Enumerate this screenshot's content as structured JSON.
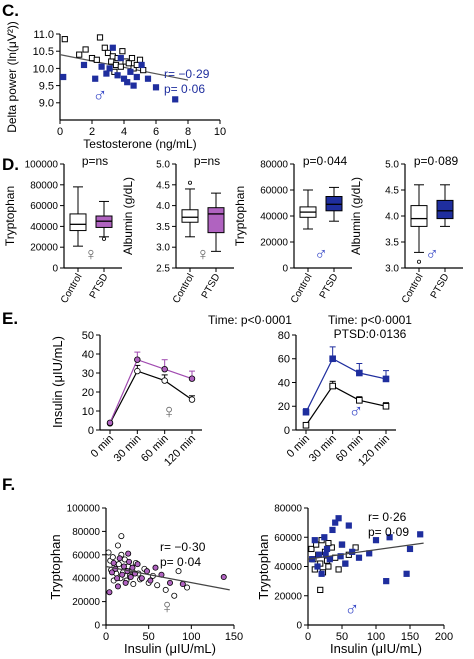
{
  "colors": {
    "blue": "#1f2e9e",
    "blue_sym": "#3a4bc8",
    "purple": "#a04ab0",
    "purple_fill": "#b063c0",
    "black": "#000000"
  },
  "panels": {
    "C": {
      "letter": "C."
    },
    "D": {
      "letter": "D."
    },
    "E": {
      "letter": "E."
    },
    "F": {
      "letter": "F."
    }
  },
  "chart_data": [
    {
      "id": "C",
      "type": "scatter",
      "xlabel": "Testosterone (ng/mL)",
      "ylabel": "Delta power (ln(μV²))",
      "xlim": [
        0,
        10
      ],
      "ylim": [
        8.5,
        11.0
      ],
      "xticks": [
        0,
        2,
        4,
        6,
        8,
        10
      ],
      "yticks": [
        9.0,
        9.5,
        10.0,
        10.5,
        11.0
      ],
      "ytick_labels": [
        "9.0",
        "9.5",
        "10.0",
        "10.5",
        "11.0"
      ],
      "symbol": "♂",
      "annotation": [
        "r= −0·29",
        "p= 0·06"
      ],
      "trend": {
        "x": [
          0,
          8
        ],
        "y": [
          10.4,
          9.66
        ]
      },
      "series": [
        {
          "style": "open-square",
          "points": [
            [
              0.3,
              10.85
            ],
            [
              1.2,
              10.4
            ],
            [
              1.6,
              10.55
            ],
            [
              2.0,
              10.3
            ],
            [
              2.3,
              10.25
            ],
            [
              2.5,
              10.9
            ],
            [
              2.8,
              10.6
            ],
            [
              3.0,
              10.45
            ],
            [
              3.2,
              10.2
            ],
            [
              3.3,
              10.35
            ],
            [
              3.5,
              10.1
            ],
            [
              3.6,
              10.3
            ],
            [
              3.8,
              10.05
            ],
            [
              3.9,
              10.5
            ],
            [
              4.1,
              10.2
            ],
            [
              4.3,
              10.15
            ],
            [
              4.5,
              10.3
            ],
            [
              4.6,
              10.0
            ],
            [
              4.8,
              10.1
            ],
            [
              5.0,
              10.25
            ],
            [
              5.2,
              9.95
            ],
            [
              3.4,
              9.9
            ]
          ]
        },
        {
          "style": "filled-square",
          "points": [
            [
              0.2,
              9.75
            ],
            [
              1.5,
              10.1
            ],
            [
              2.2,
              9.7
            ],
            [
              2.6,
              10.05
            ],
            [
              2.9,
              9.85
            ],
            [
              3.1,
              10.0
            ],
            [
              3.3,
              10.6
            ],
            [
              3.6,
              9.8
            ],
            [
              3.8,
              10.3
            ],
            [
              4.0,
              9.7
            ],
            [
              4.2,
              9.6
            ],
            [
              4.4,
              9.9
            ],
            [
              4.6,
              9.5
            ],
            [
              4.8,
              9.75
            ],
            [
              5.1,
              10.1
            ],
            [
              5.5,
              9.7
            ],
            [
              7.2,
              9.1
            ],
            [
              6.0,
              9.45
            ]
          ]
        }
      ]
    },
    {
      "id": "D1",
      "type": "box",
      "p_label": "p=ns",
      "ylabel": "Tryptophan",
      "ylim": [
        0,
        100000
      ],
      "yticks": [
        0,
        20000,
        40000,
        60000,
        80000,
        100000
      ],
      "ytick_labels": [
        "0",
        "20000",
        "40000",
        "60000",
        "80000",
        "100000"
      ],
      "categories": [
        "Control",
        "PTSD"
      ],
      "symbol": "♀",
      "boxes": [
        {
          "category": "Control",
          "whisker_low": 21000,
          "q1": 36000,
          "median": 42000,
          "q3": 52000,
          "whisker_high": 78000,
          "fill": "none"
        },
        {
          "category": "PTSD",
          "whisker_low": 30000,
          "q1": 39000,
          "median": 45000,
          "q3": 50000,
          "whisker_high": 64000,
          "fill": "purple",
          "outliers": [
            28000
          ]
        }
      ]
    },
    {
      "id": "D2",
      "type": "box",
      "p_label": "p=ns",
      "ylabel": "Albumin (g/dL)",
      "ylim": [
        2.5,
        5.0
      ],
      "yticks": [
        2.5,
        3.0,
        3.5,
        4.0,
        4.5,
        5.0
      ],
      "ytick_labels": [
        "2.5",
        "3.0",
        "3.5",
        "4.0",
        "4.5",
        "5.0"
      ],
      "categories": [
        "Control",
        "PTSD"
      ],
      "symbol": "♀",
      "boxes": [
        {
          "category": "Control",
          "whisker_low": 3.25,
          "q1": 3.6,
          "median": 3.72,
          "q3": 3.9,
          "whisker_high": 4.4,
          "fill": "none",
          "outliers": [
            4.55
          ]
        },
        {
          "category": "PTSD",
          "whisker_low": 2.9,
          "q1": 3.35,
          "median": 3.8,
          "q3": 3.95,
          "whisker_high": 4.3,
          "fill": "purple"
        }
      ]
    },
    {
      "id": "D3",
      "type": "box",
      "p_label": "p=0·044",
      "ylabel": "Tryptophan",
      "ylim": [
        0,
        80000
      ],
      "yticks": [
        0,
        20000,
        40000,
        60000,
        80000
      ],
      "ytick_labels": [
        "0",
        "20000",
        "40000",
        "60000",
        "80000"
      ],
      "categories": [
        "Control",
        "PTSD"
      ],
      "symbol": "♂",
      "boxes": [
        {
          "category": "Control",
          "whisker_low": 30000,
          "q1": 39000,
          "median": 43000,
          "q3": 47000,
          "whisker_high": 60000,
          "fill": "none"
        },
        {
          "category": "PTSD",
          "whisker_low": 36000,
          "q1": 44000,
          "median": 49000,
          "q3": 55000,
          "whisker_high": 62000,
          "fill": "blue"
        }
      ]
    },
    {
      "id": "D4",
      "type": "box",
      "p_label": "p=0·089",
      "ylabel": "Albumin (g/dL)",
      "ylim": [
        3.0,
        5.0
      ],
      "yticks": [
        3.0,
        3.5,
        4.0,
        4.5,
        5.0
      ],
      "ytick_labels": [
        "3.0",
        "3.5",
        "4.0",
        "4.5",
        "5.0"
      ],
      "categories": [
        "Control",
        "PTSD"
      ],
      "symbol": "♂",
      "boxes": [
        {
          "category": "Control",
          "whisker_low": 3.3,
          "q1": 3.8,
          "median": 3.95,
          "q3": 4.2,
          "whisker_high": 4.6,
          "fill": "none",
          "outliers": [
            3.12
          ]
        },
        {
          "category": "PTSD",
          "whisker_low": 3.8,
          "q1": 3.95,
          "median": 4.1,
          "q3": 4.3,
          "whisker_high": 4.6,
          "fill": "blue"
        }
      ]
    },
    {
      "id": "E1",
      "type": "line",
      "ylabel": "Insulin (μIU/mL)",
      "title_lines": [
        "Time: p<0·0001"
      ],
      "categories": [
        "0 min",
        "30 min",
        "60 min",
        "120 min"
      ],
      "ylim": [
        0,
        50
      ],
      "yticks": [
        0,
        10,
        20,
        30,
        40,
        50
      ],
      "symbol": "♀",
      "series": [
        {
          "style": "open-circle",
          "color": "black",
          "values": [
            3.5,
            31,
            26,
            16
          ],
          "err": [
            0.5,
            3,
            3,
            2
          ]
        },
        {
          "style": "filled-circle",
          "color": "purple",
          "values": [
            3.8,
            37,
            32,
            27
          ],
          "err": [
            0.5,
            4,
            5,
            4
          ]
        }
      ]
    },
    {
      "id": "E2",
      "type": "line",
      "title_lines": [
        "Time: p<0·0001",
        "PTSD:0·0136"
      ],
      "categories": [
        "0 min",
        "30 min",
        "60 min",
        "120 min"
      ],
      "ylim": [
        0,
        80
      ],
      "yticks": [
        0,
        20,
        40,
        60,
        80
      ],
      "symbol": "♂",
      "series": [
        {
          "style": "open-square",
          "color": "black",
          "values": [
            4,
            37,
            25,
            20
          ],
          "err": [
            1,
            4,
            3,
            3
          ]
        },
        {
          "style": "filled-square",
          "color": "blue",
          "values": [
            15,
            60,
            48,
            43
          ],
          "err": [
            3,
            10,
            8,
            7
          ]
        }
      ]
    },
    {
      "id": "F1",
      "type": "scatter",
      "ylabel": "Tryptophan",
      "xlabel": "Insulin (μIU/mL)",
      "xlim": [
        0,
        150
      ],
      "ylim": [
        0,
        100000
      ],
      "xticks": [
        0,
        50,
        100,
        150
      ],
      "yticks": [
        0,
        20000,
        40000,
        60000,
        80000,
        100000
      ],
      "ytick_labels": [
        "0",
        "20000",
        "40000",
        "60000",
        "80000",
        "100000"
      ],
      "annotation": [
        "r= −0·30",
        "p= 0·04"
      ],
      "symbol": "♀",
      "trend": {
        "x": [
          0,
          145
        ],
        "y": [
          50000,
          30000
        ]
      },
      "series": [
        {
          "style": "open-circle",
          "points": [
            [
              3,
              62000
            ],
            [
              5,
              55000
            ],
            [
              6,
              47000
            ],
            [
              8,
              58000
            ],
            [
              10,
              50000
            ],
            [
              12,
              44000
            ],
            [
              14,
              68000
            ],
            [
              15,
              52000
            ],
            [
              17,
              40000
            ],
            [
              18,
              60000
            ],
            [
              20,
              45000
            ],
            [
              22,
              56000
            ],
            [
              24,
              38000
            ],
            [
              26,
              50000
            ],
            [
              28,
              42000
            ],
            [
              30,
              47000
            ],
            [
              32,
              35000
            ],
            [
              35,
              53000
            ],
            [
              38,
              44000
            ],
            [
              40,
              39000
            ],
            [
              45,
              48000
            ],
            [
              50,
              36000
            ],
            [
              55,
              42000
            ],
            [
              60,
              34000
            ],
            [
              70,
              30000
            ],
            [
              80,
              25000
            ],
            [
              85,
              46000
            ],
            [
              95,
              32000
            ],
            [
              18,
              76000
            ],
            [
              9,
              38000
            ]
          ]
        },
        {
          "style": "filled-circle",
          "points": [
            [
              4,
              28000
            ],
            [
              7,
              45000
            ],
            [
              9,
              53000
            ],
            [
              11,
              48000
            ],
            [
              13,
              40000
            ],
            [
              16,
              57000
            ],
            [
              19,
              43000
            ],
            [
              21,
              50000
            ],
            [
              23,
              36000
            ],
            [
              25,
              46000
            ],
            [
              27,
              54000
            ],
            [
              29,
              41000
            ],
            [
              31,
              49000
            ],
            [
              34,
              44000
            ],
            [
              37,
              52000
            ],
            [
              42,
              40000
            ],
            [
              48,
              46000
            ],
            [
              52,
              38000
            ],
            [
              58,
              49000
            ],
            [
              65,
              43000
            ],
            [
              75,
              36000
            ],
            [
              90,
              35000
            ],
            [
              138,
              41000
            ],
            [
              14,
              33000
            ],
            [
              26,
              61000
            ]
          ]
        }
      ]
    },
    {
      "id": "F2",
      "type": "scatter",
      "ylabel": "Tryptophan",
      "xlabel": "Insulin (μIU/mL)",
      "xlim": [
        0,
        200
      ],
      "ylim": [
        0,
        80000
      ],
      "xticks": [
        0,
        50,
        100,
        150,
        200
      ],
      "yticks": [
        0,
        20000,
        40000,
        60000,
        80000
      ],
      "ytick_labels": [
        "0",
        "20000",
        "40000",
        "60000",
        "80000"
      ],
      "annotation": [
        "r= 0·26",
        "p= 0·09"
      ],
      "symbol": "♂",
      "trend": {
        "x": [
          0,
          170
        ],
        "y": [
          45000,
          56000
        ]
      },
      "series": [
        {
          "style": "open-square",
          "points": [
            [
              5,
              52000
            ],
            [
              8,
              45000
            ],
            [
              10,
              38000
            ],
            [
              12,
              55000
            ],
            [
              15,
              48000
            ],
            [
              18,
              42000
            ],
            [
              20,
              58000
            ],
            [
              22,
              36000
            ],
            [
              25,
              50000
            ],
            [
              28,
              44000
            ],
            [
              30,
              40000
            ],
            [
              35,
              53000
            ],
            [
              40,
              46000
            ],
            [
              45,
              38000
            ],
            [
              50,
              55000
            ],
            [
              55,
              42000
            ],
            [
              60,
              48000
            ],
            [
              18,
              24000
            ],
            [
              30,
              56000
            ],
            [
              70,
              53000
            ]
          ]
        },
        {
          "style": "filled-square",
          "points": [
            [
              6,
              45000
            ],
            [
              10,
              58000
            ],
            [
              14,
              40000
            ],
            [
              16,
              48000
            ],
            [
              20,
              35000
            ],
            [
              24,
              60000
            ],
            [
              28,
              52000
            ],
            [
              32,
              45000
            ],
            [
              36,
              65000
            ],
            [
              40,
              70000
            ],
            [
              45,
              73000
            ],
            [
              50,
              55000
            ],
            [
              55,
              42000
            ],
            [
              60,
              68000
            ],
            [
              65,
              50000
            ],
            [
              75,
              46000
            ],
            [
              90,
              49000
            ],
            [
              100,
              58000
            ],
            [
              115,
              30000
            ],
            [
              120,
              60000
            ],
            [
              145,
              35000
            ],
            [
              150,
              52000
            ],
            [
              165,
              62000
            ],
            [
              26,
              48000
            ],
            [
              48,
              47000
            ]
          ]
        }
      ]
    }
  ]
}
